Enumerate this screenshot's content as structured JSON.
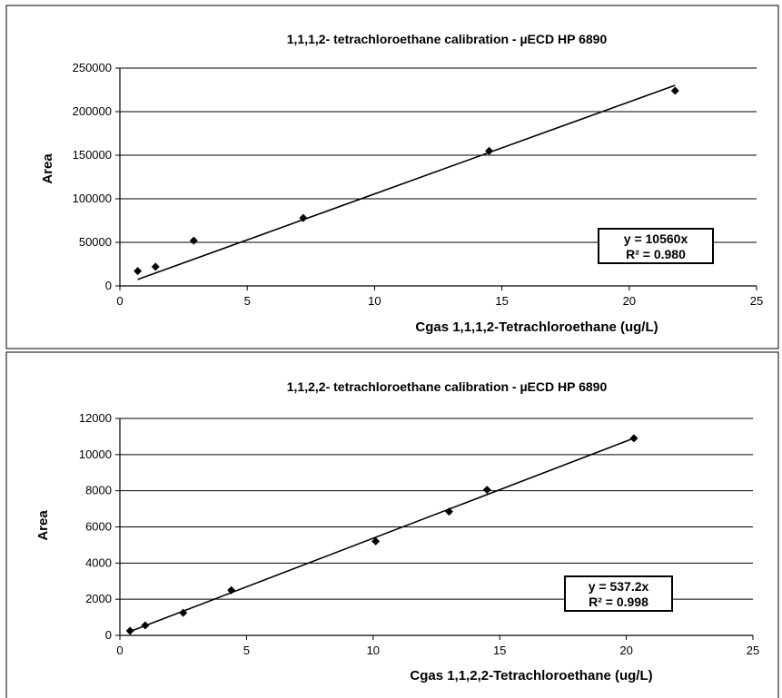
{
  "charts": [
    {
      "title": "1,1,1,2- tetrachloroethane calibration  - µECD HP 6890",
      "xlabel": "Cgas 1,1,1,2-Tetrachloroethane (ug/L)",
      "ylabel": "Area",
      "equation": "y = 10560x",
      "r2": "R² = 0.980",
      "yticks": [
        "0",
        "50000",
        "100000",
        "150000",
        "200000",
        "250000"
      ],
      "xticks": [
        "0",
        "5",
        "10",
        "15",
        "20",
        "25"
      ]
    },
    {
      "title": "1,1,2,2- tetrachloroethane calibration  - µECD HP 6890",
      "xlabel": "Cgas 1,1,2,2-Tetrachloroethane (ug/L)",
      "ylabel": "Area",
      "equation": "y = 537.2x",
      "r2": "R² = 0.998",
      "yticks": [
        "0",
        "2000",
        "4000",
        "6000",
        "8000",
        "10000",
        "12000"
      ],
      "xticks": [
        "0",
        "5",
        "10",
        "15",
        "20",
        "25"
      ]
    }
  ],
  "chart_data": [
    {
      "type": "scatter",
      "title": "1,1,1,2- tetrachloroethane calibration  - µECD HP 6890",
      "xlabel": "Cgas 1,1,1,2-Tetrachloroethane (ug/L)",
      "ylabel": "Area",
      "xlim": [
        0,
        25
      ],
      "ylim": [
        0,
        250000
      ],
      "grid": "horizontal",
      "series": [
        {
          "x": [
            0.7,
            1.4,
            2.9,
            7.2,
            14.5,
            21.8
          ],
          "y": [
            17000,
            22000,
            52000,
            78000,
            155000,
            224000
          ]
        }
      ],
      "trendline": {
        "slope": 10560,
        "intercept": 0,
        "x_range": [
          0.7,
          21.8
        ]
      },
      "annotation": [
        "y = 10560x",
        "R² = 0.980"
      ]
    },
    {
      "type": "scatter",
      "title": "1,1,2,2- tetrachloroethane calibration  - µECD HP 6890",
      "xlabel": "Cgas 1,1,2,2-Tetrachloroethane (ug/L)",
      "ylabel": "Area",
      "xlim": [
        0,
        25
      ],
      "ylim": [
        0,
        12000
      ],
      "grid": "horizontal",
      "series": [
        {
          "x": [
            0.4,
            1.0,
            2.5,
            4.4,
            10.1,
            13.0,
            14.5,
            20.3
          ],
          "y": [
            250,
            550,
            1250,
            2500,
            5200,
            6850,
            8050,
            10900
          ]
        }
      ],
      "trendline": {
        "slope": 537.2,
        "intercept": 0,
        "x_range": [
          0.4,
          20.3
        ]
      },
      "annotation": [
        "y = 537.2x",
        "R² = 0.998"
      ]
    }
  ]
}
